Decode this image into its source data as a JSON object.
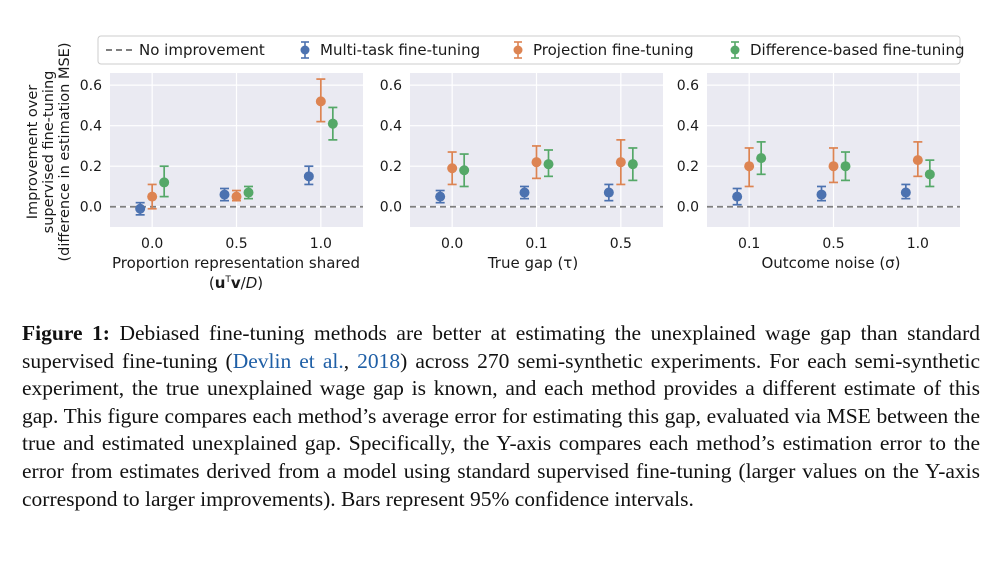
{
  "colors": {
    "multi": "#4c72b0",
    "projection": "#dd8452",
    "difference": "#55a868",
    "baseline": "#7f7f7f",
    "panel_bg": "#eaeaf2",
    "citation": "#1f5fa6"
  },
  "legend": {
    "no_improvement": "No improvement",
    "multi": "Multi-task fine-tuning",
    "projection": "Projection fine-tuning",
    "difference": "Difference-based fine-tuning"
  },
  "ylabel": [
    "Improvement over",
    "supervised fine-tuning",
    "(difference in estimation MSE)"
  ],
  "chart_data": [
    {
      "type": "scatter",
      "xlabel": "Proportion representation shared",
      "xlabel_line2": "(uTv/D)",
      "categories": [
        "0.0",
        "0.5",
        "1.0"
      ],
      "ylim": [
        -0.1,
        0.66
      ],
      "yticks": [
        "0.0",
        "0.2",
        "0.4",
        "0.6"
      ],
      "series": [
        {
          "name": "Multi-task fine-tuning",
          "values": [
            -0.01,
            0.06,
            0.15
          ],
          "ci_low": [
            -0.04,
            0.03,
            0.11
          ],
          "ci_high": [
            0.02,
            0.09,
            0.2
          ]
        },
        {
          "name": "Projection fine-tuning",
          "values": [
            0.05,
            0.05,
            0.52
          ],
          "ci_low": [
            -0.01,
            0.03,
            0.42
          ],
          "ci_high": [
            0.11,
            0.08,
            0.63
          ]
        },
        {
          "name": "Difference-based fine-tuning",
          "values": [
            0.12,
            0.07,
            0.41
          ],
          "ci_low": [
            0.05,
            0.04,
            0.33
          ],
          "ci_high": [
            0.2,
            0.1,
            0.49
          ]
        }
      ]
    },
    {
      "type": "scatter",
      "xlabel": "True gap (τ)",
      "categories": [
        "0.0",
        "0.1",
        "0.5"
      ],
      "ylim": [
        -0.1,
        0.66
      ],
      "yticks": [
        "0.0",
        "0.2",
        "0.4",
        "0.6"
      ],
      "series": [
        {
          "name": "Multi-task fine-tuning",
          "values": [
            0.05,
            0.07,
            0.07
          ],
          "ci_low": [
            0.02,
            0.04,
            0.03
          ],
          "ci_high": [
            0.08,
            0.1,
            0.11
          ]
        },
        {
          "name": "Projection fine-tuning",
          "values": [
            0.19,
            0.22,
            0.22
          ],
          "ci_low": [
            0.11,
            0.14,
            0.11
          ],
          "ci_high": [
            0.27,
            0.3,
            0.33
          ]
        },
        {
          "name": "Difference-based fine-tuning",
          "values": [
            0.18,
            0.21,
            0.21
          ],
          "ci_low": [
            0.1,
            0.15,
            0.13
          ],
          "ci_high": [
            0.26,
            0.28,
            0.29
          ]
        }
      ]
    },
    {
      "type": "scatter",
      "xlabel": "Outcome noise (σ)",
      "categories": [
        "0.1",
        "0.5",
        "1.0"
      ],
      "ylim": [
        -0.1,
        0.66
      ],
      "yticks": [
        "0.0",
        "0.2",
        "0.4",
        "0.6"
      ],
      "series": [
        {
          "name": "Multi-task fine-tuning",
          "values": [
            0.05,
            0.06,
            0.07
          ],
          "ci_low": [
            0.01,
            0.03,
            0.04
          ],
          "ci_high": [
            0.09,
            0.1,
            0.11
          ]
        },
        {
          "name": "Projection fine-tuning",
          "values": [
            0.2,
            0.2,
            0.23
          ],
          "ci_low": [
            0.1,
            0.12,
            0.15
          ],
          "ci_high": [
            0.29,
            0.29,
            0.32
          ]
        },
        {
          "name": "Difference-based fine-tuning",
          "values": [
            0.24,
            0.2,
            0.16
          ],
          "ci_low": [
            0.16,
            0.13,
            0.1
          ],
          "ci_high": [
            0.32,
            0.27,
            0.23
          ]
        }
      ]
    }
  ],
  "caption": {
    "label": "Figure 1:",
    "text_before": " Debiased fine-tuning methods are better at estimating the unexplained wage gap than standard supervised fine-tuning (",
    "cite_author": "Devlin et al.",
    "cite_sep": ", ",
    "cite_year": "2018",
    "text_after": ") across 270 semi-synthetic experiments. For each semi-synthetic experiment, the true unexplained wage gap is known, and each method provides a different estimate of this gap. This figure compares each method’s average error for estimating this gap, evaluated via MSE between the true and estimated unexplained gap. Specifically, the Y-axis compares each method’s estimation error to the error from estimates derived from a model using standard supervised fine-tuning (larger values on the Y-axis correspond to larger improvements). Bars represent 95% confidence intervals."
  }
}
